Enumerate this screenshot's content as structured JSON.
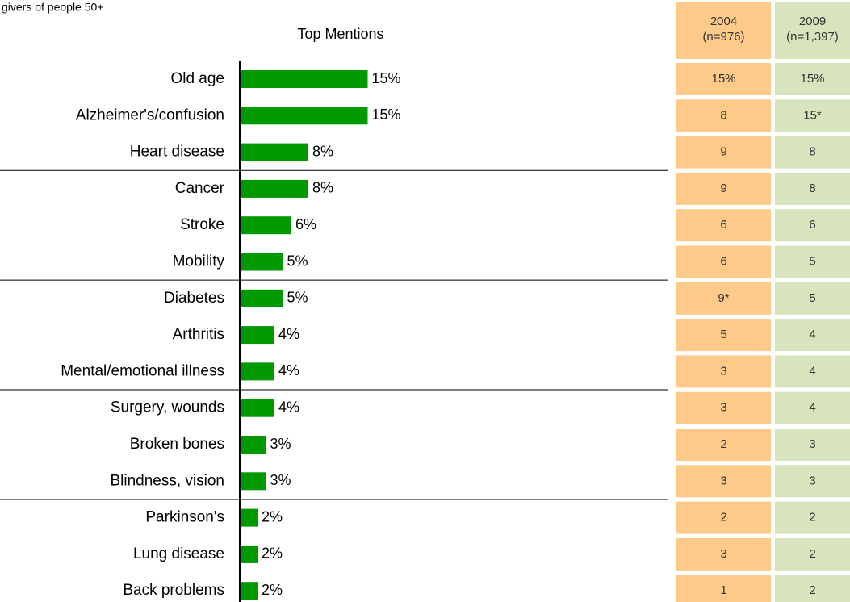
{
  "chart_data": {
    "type": "bar",
    "orientation": "horizontal",
    "title": "Top Mentions",
    "subtitle": "givers of people 50+",
    "color": "#009900",
    "categories": [
      "Old age",
      "Alzheimer's/confusion",
      "Heart disease",
      "Cancer",
      "Stroke",
      "Mobility",
      "Diabetes",
      "Arthritis",
      "Mental/emotional illness",
      "Surgery, wounds",
      "Broken bones",
      "Blindness, vision",
      "Parkinson's",
      "Lung disease",
      "Back problems"
    ],
    "values": [
      15,
      15,
      8,
      8,
      6,
      5,
      5,
      4,
      4,
      4,
      3,
      3,
      2,
      2,
      2
    ],
    "value_labels": [
      "15%",
      "15%",
      "8%",
      "8%",
      "6%",
      "5%",
      "5%",
      "4%",
      "4%",
      "4%",
      "3%",
      "3%",
      "2%",
      "2%",
      "2%"
    ]
  },
  "table": {
    "columns": [
      {
        "header": [
          "2004",
          "(n=976)"
        ],
        "color": "#fdca8a",
        "cells": [
          "15%",
          "8",
          "9",
          "9",
          "6",
          "6",
          "9*",
          "5",
          "3",
          "3",
          "2",
          "3",
          "2",
          "3",
          "1"
        ]
      },
      {
        "header": [
          "2009",
          "(n=1,397)"
        ],
        "color": "#d7e4bd",
        "cells": [
          "15%",
          "15*",
          "8",
          "8",
          "6",
          "5",
          "5",
          "4",
          "4",
          "4",
          "3",
          "3",
          "2",
          "2",
          "2"
        ]
      }
    ]
  }
}
